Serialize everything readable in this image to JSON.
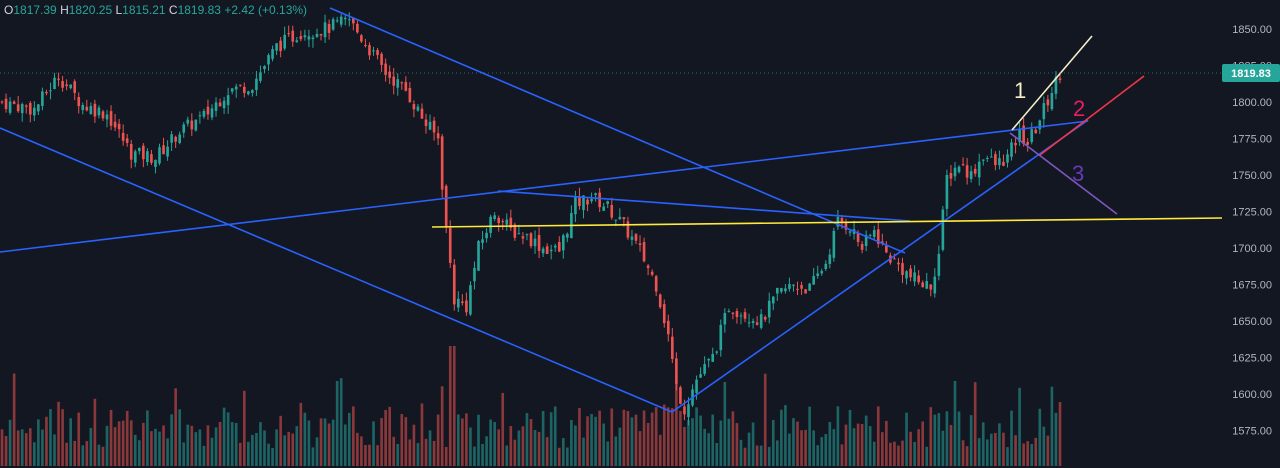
{
  "ohlc": {
    "o_label": "O",
    "o": "1817.39",
    "h_label": "H",
    "h": "1820.25",
    "l_label": "L",
    "l": "1815.21",
    "c_label": "C",
    "c": "1819.83",
    "change": "+2.42 (+0.13%)"
  },
  "colors": {
    "background": "#131722",
    "up": "#26a69a",
    "down": "#ef5350",
    "blue_line": "#2962ff",
    "yellow_line": "#ffeb3b",
    "white_line": "#f5f0c8",
    "red_line": "#f23645",
    "purple_line": "#7e57c2",
    "label_1": "#f5f0c8",
    "label_2": "#e91e63",
    "label_3": "#673ab7"
  },
  "price_badge": "1819.83",
  "annotations": [
    {
      "text": "1",
      "color": "#f5f0c8"
    },
    {
      "text": "2",
      "color": "#e91e63"
    },
    {
      "text": "3",
      "color": "#673ab7"
    }
  ],
  "chart_data": {
    "type": "candlestick",
    "y_axis_ticks": [
      "1850.00",
      "1825.00",
      "1800.00",
      "1775.00",
      "1750.00",
      "1725.00",
      "1700.00",
      "1675.00",
      "1650.00",
      "1625.00",
      "1600.00",
      "1575.00"
    ],
    "y_axis_values": [
      1850,
      1825,
      1800,
      1775,
      1750,
      1725,
      1700,
      1675,
      1650,
      1625,
      1600,
      1575
    ],
    "ylim": [
      1568,
      1864
    ],
    "last_price": 1819.83,
    "grid": false,
    "closes_anchor": [
      [
        0,
        1800
      ],
      [
        8,
        1795
      ],
      [
        14,
        1818
      ],
      [
        20,
        1798
      ],
      [
        26,
        1792
      ],
      [
        32,
        1765
      ],
      [
        38,
        1762
      ],
      [
        44,
        1780
      ],
      [
        50,
        1790
      ],
      [
        56,
        1808
      ],
      [
        62,
        1812
      ],
      [
        68,
        1838
      ],
      [
        74,
        1848
      ],
      [
        80,
        1850
      ],
      [
        86,
        1856
      ],
      [
        90,
        1840
      ],
      [
        95,
        1820
      ],
      [
        100,
        1808
      ],
      [
        105,
        1785
      ],
      [
        108,
        1775
      ],
      [
        110,
        1713
      ],
      [
        112,
        1665
      ],
      [
        115,
        1660
      ],
      [
        118,
        1700
      ],
      [
        122,
        1725
      ],
      [
        126,
        1712
      ],
      [
        130,
        1708
      ],
      [
        134,
        1700
      ],
      [
        138,
        1698
      ],
      [
        142,
        1730
      ],
      [
        146,
        1735
      ],
      [
        150,
        1728
      ],
      [
        154,
        1715
      ],
      [
        158,
        1698
      ],
      [
        162,
        1675
      ],
      [
        165,
        1640
      ],
      [
        167,
        1605
      ],
      [
        169,
        1590
      ],
      [
        172,
        1610
      ],
      [
        176,
        1625
      ],
      [
        180,
        1660
      ],
      [
        184,
        1655
      ],
      [
        188,
        1650
      ],
      [
        192,
        1668
      ],
      [
        196,
        1675
      ],
      [
        200,
        1672
      ],
      [
        204,
        1690
      ],
      [
        207,
        1718
      ],
      [
        210,
        1715
      ],
      [
        213,
        1700
      ],
      [
        216,
        1712
      ],
      [
        219,
        1696
      ],
      [
        222,
        1688
      ],
      [
        225,
        1680
      ],
      [
        228,
        1675
      ],
      [
        230,
        1674
      ],
      [
        232,
        1696
      ],
      [
        234,
        1748
      ],
      [
        237,
        1758
      ],
      [
        240,
        1750
      ],
      [
        243,
        1764
      ],
      [
        246,
        1757
      ],
      [
        249,
        1762
      ],
      [
        252,
        1778
      ],
      [
        254,
        1772
      ],
      [
        256,
        1782
      ],
      [
        258,
        1795
      ],
      [
        260,
        1808
      ],
      [
        262,
        1820
      ]
    ],
    "candle_count": 263,
    "volume_note": "volume bars along bottom"
  }
}
